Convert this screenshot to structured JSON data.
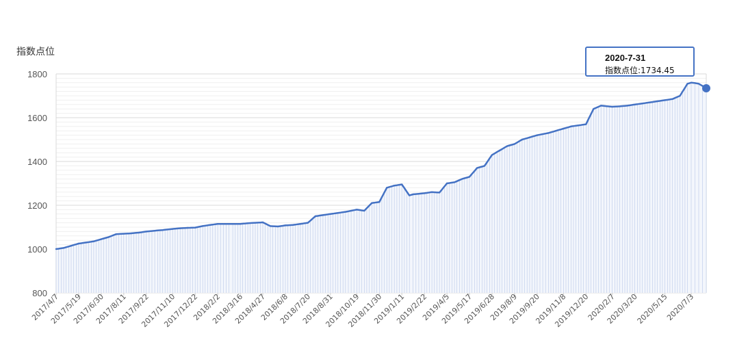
{
  "chart_data": {
    "type": "area",
    "ylabel": "指数点位",
    "xlabel": "",
    "ylim": [
      800,
      1800
    ],
    "yticks": [
      800,
      1000,
      1200,
      1400,
      1600,
      1800
    ],
    "grid": true,
    "x_labels": [
      "2017/4/7",
      "2017/5/19",
      "2017/6/30",
      "2017/8/11",
      "2017/9/22",
      "2017/11/10",
      "2017/12/22",
      "2018/2/2",
      "2018/3/16",
      "2018/4/27",
      "2018/6/8",
      "2018/7/20",
      "2018/8/31",
      "2018/10/19",
      "2018/11/30",
      "2019/1/11",
      "2019/2/22",
      "2019/4/5",
      "2019/5/17",
      "2019/6/28",
      "2019/8/9",
      "2019/9/20",
      "2019/11/8",
      "2019/12/20",
      "2020/2/7",
      "2020/3/20",
      "2020/5/15",
      "2020/7/3"
    ],
    "series": [
      {
        "color": "#4472c4",
        "x": [
          "2017/4/7",
          "2017/4/21",
          "2017/5/5",
          "2017/5/19",
          "2017/6/2",
          "2017/6/16",
          "2017/6/30",
          "2017/7/14",
          "2017/7/28",
          "2017/8/11",
          "2017/8/25",
          "2017/9/8",
          "2017/9/22",
          "2017/10/13",
          "2017/10/27",
          "2017/11/10",
          "2017/11/24",
          "2017/12/8",
          "2017/12/22",
          "2018/1/5",
          "2018/1/19",
          "2018/2/2",
          "2018/2/23",
          "2018/3/2",
          "2018/3/16",
          "2018/3/30",
          "2018/4/13",
          "2018/4/27",
          "2018/5/11",
          "2018/5/25",
          "2018/6/8",
          "2018/6/22",
          "2018/7/6",
          "2018/7/20",
          "2018/8/3",
          "2018/8/17",
          "2018/8/31",
          "2018/9/14",
          "2018/9/28",
          "2018/10/19",
          "2018/11/2",
          "2018/11/16",
          "2018/11/30",
          "2018/12/14",
          "2018/12/28",
          "2019/1/11",
          "2019/1/25",
          "2019/2/1",
          "2019/2/22",
          "2019/3/8",
          "2019/3/22",
          "2019/4/5",
          "2019/4/19",
          "2019/5/3",
          "2019/5/17",
          "2019/5/31",
          "2019/6/14",
          "2019/6/28",
          "2019/7/12",
          "2019/7/26",
          "2019/8/9",
          "2019/8/23",
          "2019/9/6",
          "2019/9/20",
          "2019/10/11",
          "2019/10/25",
          "2019/11/8",
          "2019/11/22",
          "2019/12/6",
          "2019/12/20",
          "2020/1/3",
          "2020/1/17",
          "2020/2/7",
          "2020/2/21",
          "2020/3/6",
          "2020/3/20",
          "2020/4/3",
          "2020/4/17",
          "2020/5/1",
          "2020/5/15",
          "2020/5/29",
          "2020/6/12",
          "2020/6/26",
          "2020/7/3",
          "2020/7/10",
          "2020/7/17",
          "2020/7/24",
          "2020/7/31"
        ],
        "values": [
          1000,
          1005,
          1015,
          1025,
          1030,
          1035,
          1045,
          1055,
          1068,
          1070,
          1072,
          1075,
          1080,
          1085,
          1088,
          1092,
          1095,
          1097,
          1098,
          1105,
          1110,
          1115,
          1115,
          1115,
          1115,
          1118,
          1120,
          1122,
          1105,
          1103,
          1108,
          1110,
          1115,
          1120,
          1150,
          1155,
          1160,
          1165,
          1170,
          1180,
          1175,
          1210,
          1215,
          1280,
          1290,
          1295,
          1245,
          1250,
          1255,
          1260,
          1258,
          1300,
          1305,
          1320,
          1330,
          1370,
          1380,
          1430,
          1450,
          1470,
          1480,
          1500,
          1510,
          1520,
          1530,
          1540,
          1550,
          1560,
          1565,
          1570,
          1640,
          1655,
          1650,
          1652,
          1655,
          1660,
          1665,
          1670,
          1675,
          1680,
          1685,
          1700,
          1755,
          1760,
          1758,
          1755,
          1745,
          1734.45
        ]
      }
    ],
    "tooltip": {
      "date": "2020-7-31",
      "text": "指数点位:1734.45"
    }
  }
}
